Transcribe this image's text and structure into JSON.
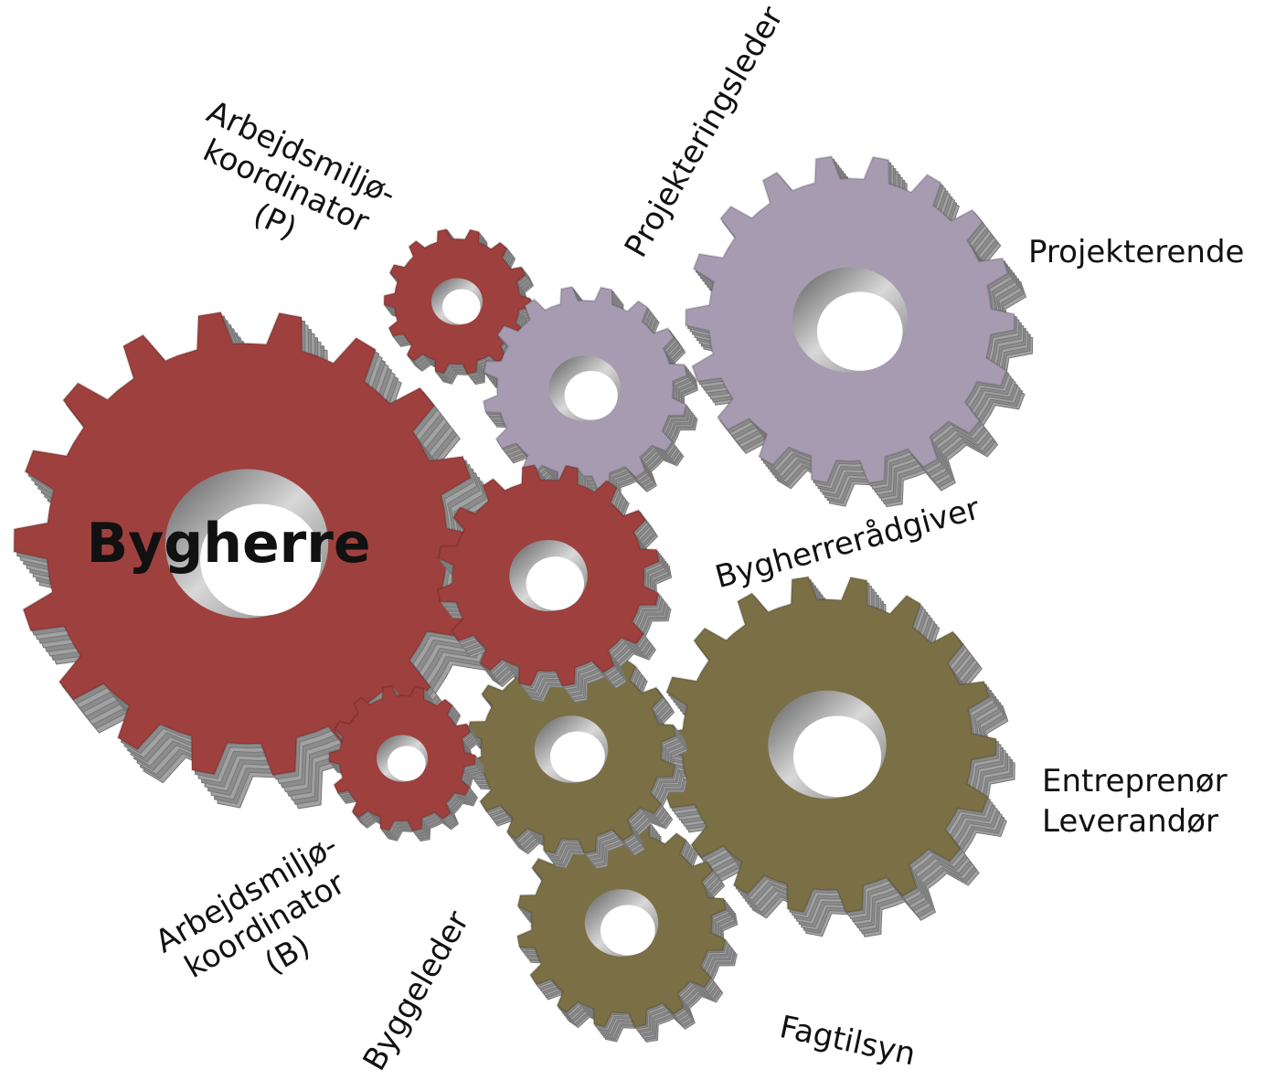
{
  "nodes": [
    {
      "lines": [
        "Bygherre"
      ]
    },
    {
      "lines": [
        "Arbejdsmiljø-",
        "koordinator",
        "(P)"
      ]
    },
    {
      "lines": [
        "Projekteringsleder"
      ]
    },
    {
      "lines": [
        "Projekterende"
      ]
    },
    {
      "lines": [
        "Bygherrerådgiver"
      ]
    },
    {
      "lines": [
        "Entreprenør",
        "Leverandør"
      ]
    },
    {
      "lines": [
        "Arbejdsmiljø-",
        "koordinator",
        "(B)"
      ]
    },
    {
      "lines": [
        "Byggeleder"
      ]
    },
    {
      "lines": [
        "Fagtilsyn"
      ]
    }
  ]
}
